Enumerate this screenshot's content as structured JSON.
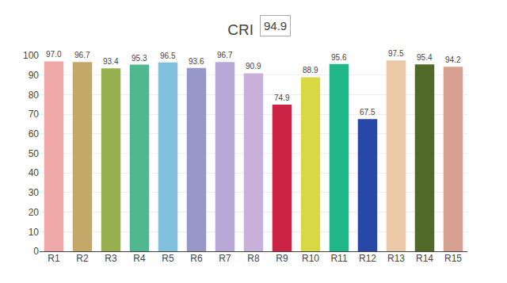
{
  "chart_data": {
    "type": "bar",
    "title": "CRI",
    "annotations": [
      "94.9"
    ],
    "categories": [
      "R1",
      "R2",
      "R3",
      "R4",
      "R5",
      "R6",
      "R7",
      "R8",
      "R9",
      "R10",
      "R11",
      "R12",
      "R13",
      "R14",
      "R15"
    ],
    "values": [
      97.0,
      96.7,
      93.4,
      95.3,
      96.5,
      93.6,
      96.7,
      90.9,
      74.9,
      88.9,
      95.6,
      67.5,
      97.5,
      95.4,
      94.2
    ],
    "value_labels": [
      "97.0",
      "96.7",
      "93.4",
      "95.3",
      "96.5",
      "93.6",
      "96.7",
      "90.9",
      "74.9",
      "88.9",
      "95.6",
      "67.5",
      "97.5",
      "95.4",
      "94.2"
    ],
    "colors": [
      "#EFA8A8",
      "#C4A86A",
      "#96B050",
      "#50B890",
      "#80C0DC",
      "#9898C8",
      "#B8A8D8",
      "#C8B0D8",
      "#CC2244",
      "#D8D844",
      "#20B888",
      "#2848A8",
      "#EAC8A8",
      "#506828",
      "#D8A090"
    ],
    "data_labels": true,
    "ylim": [
      0,
      100
    ],
    "yticks": [
      0,
      10,
      20,
      30,
      40,
      50,
      60,
      70,
      80,
      90,
      100
    ],
    "grid": true
  }
}
